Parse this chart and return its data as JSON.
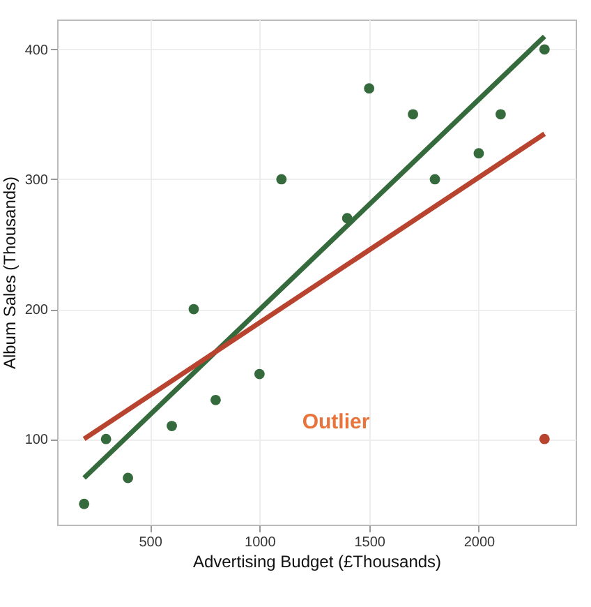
{
  "chart_data": {
    "type": "scatter",
    "xlabel": "Advertising Budget (£Thousands)",
    "ylabel": "Album Sales (Thousands)",
    "xlim": [
      77,
      2442
    ],
    "ylim": [
      34,
      423
    ],
    "xticks": [
      500,
      1000,
      1500,
      2000
    ],
    "yticks": [
      100,
      200,
      300,
      400
    ],
    "grid": true,
    "series": [
      {
        "marker": "circle",
        "color": "#356b3c",
        "x": [
          200,
          300,
          400,
          600,
          700,
          800,
          1000,
          1100,
          1400,
          1500,
          1700,
          1800,
          2000,
          2100,
          2300
        ],
        "values": [
          50,
          100,
          70,
          110,
          200,
          130,
          150,
          300,
          270,
          370,
          350,
          300,
          320,
          350,
          400
        ]
      },
      {
        "marker": "circle",
        "color": "#b8432e",
        "x": [
          2300
        ],
        "values": [
          100
        ]
      },
      {
        "type": "line",
        "color": "#356b3c",
        "x": [
          200,
          2300
        ],
        "values": [
          70,
          410
        ]
      },
      {
        "type": "line",
        "color": "#b8432e",
        "x": [
          200,
          2300
        ],
        "values": [
          100,
          335
        ]
      }
    ],
    "annotations": [
      "Outlier"
    ]
  }
}
